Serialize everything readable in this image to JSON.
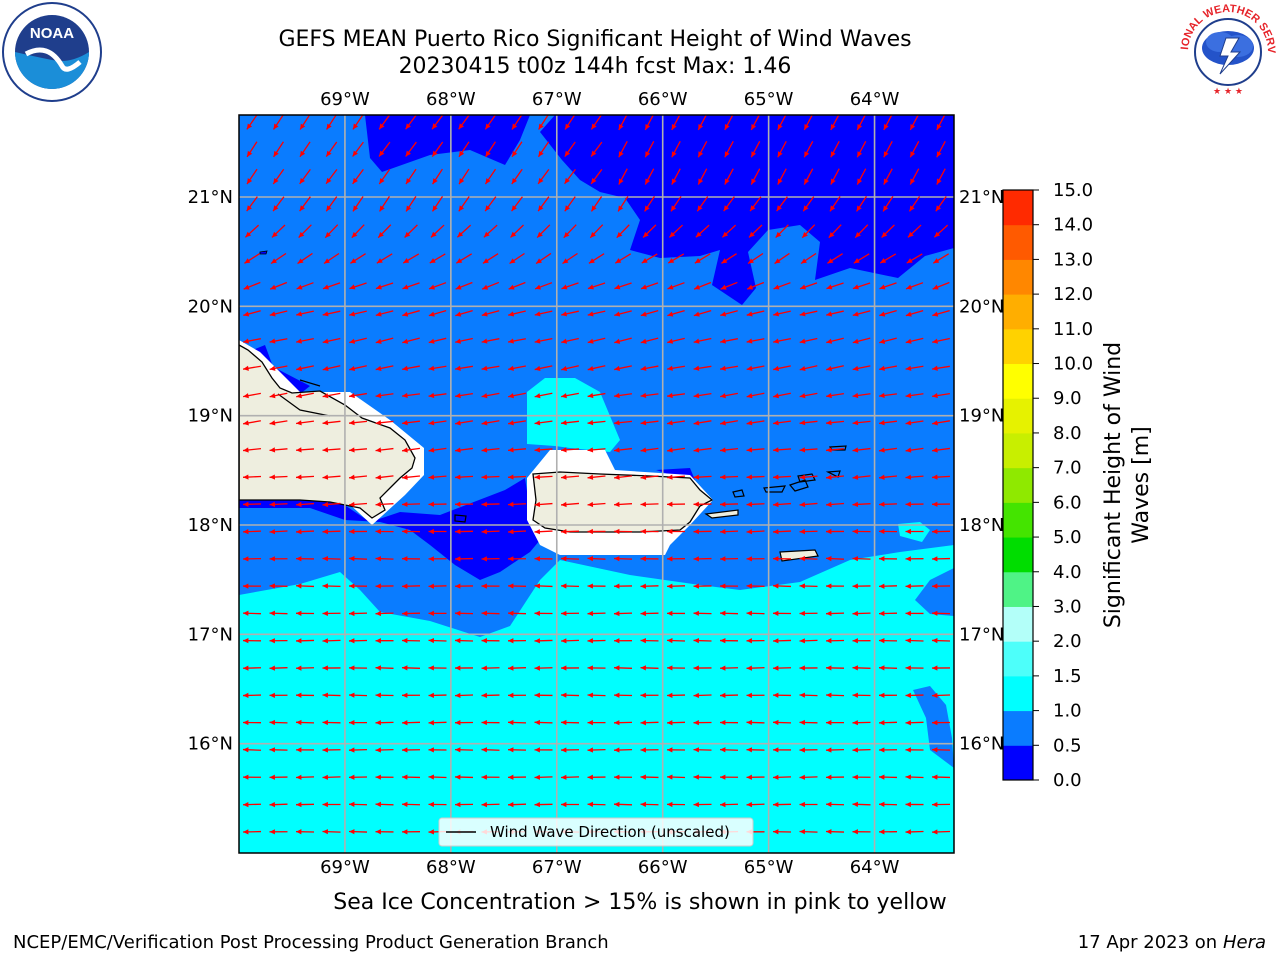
{
  "title_line1": "GEFS MEAN Puerto Rico Significant Height of Wind Waves",
  "title_line2": "20230415 t00z 144h fcst   Max: 1.46",
  "caption": "Sea Ice Concentration > 15% is shown in pink to yellow",
  "footer_left": "NCEP/EMC/Verification Post Processing Product Generation Branch",
  "footer_date": "17 Apr 2023 on ",
  "footer_host": "Hera",
  "logos": {
    "left": "NOAA",
    "right": "NATIONAL WEATHER SERVICE"
  },
  "legend_label": "Wind Wave Direction (unscaled)",
  "arrow_color": "#ff0000",
  "map": {
    "lon_range": [
      -70.0,
      -63.25
    ],
    "lat_range": [
      15.0,
      21.75
    ],
    "lon_ticks": [
      {
        "value": -69,
        "label": "69°W"
      },
      {
        "value": -68,
        "label": "68°W"
      },
      {
        "value": -67,
        "label": "67°W"
      },
      {
        "value": -66,
        "label": "66°W"
      },
      {
        "value": -65,
        "label": "65°W"
      },
      {
        "value": -64,
        "label": "64°W"
      }
    ],
    "lat_ticks": [
      {
        "value": 21,
        "label": "21°N"
      },
      {
        "value": 20,
        "label": "20°N"
      },
      {
        "value": 19,
        "label": "19°N"
      },
      {
        "value": 18,
        "label": "18°N"
      },
      {
        "value": 17,
        "label": "17°N"
      },
      {
        "value": 16,
        "label": "16°N"
      }
    ],
    "land_color": "#eeeedf",
    "gridline_color": "#b0b0b0"
  },
  "colorbar": {
    "label_line1": "Significant Height of Wind",
    "label_line2": "Waves [m]",
    "ticks": [
      "0.0",
      "0.5",
      "1.0",
      "1.5",
      "2.0",
      "3.0",
      "4.0",
      "5.0",
      "6.0",
      "7.0",
      "8.0",
      "9.0",
      "10.0",
      "11.0",
      "12.0",
      "13.0",
      "14.0",
      "15.0"
    ],
    "colors": [
      "#0000ff",
      "#0a7cff",
      "#00ffff",
      "#4dfffa",
      "#b3fff9",
      "#4ff386",
      "#00dd00",
      "#44e400",
      "#8fe900",
      "#c8ef00",
      "#e6f200",
      "#ffff00",
      "#ffd200",
      "#ffae00",
      "#ff8700",
      "#ff5a00",
      "#ff2a00"
    ]
  }
}
